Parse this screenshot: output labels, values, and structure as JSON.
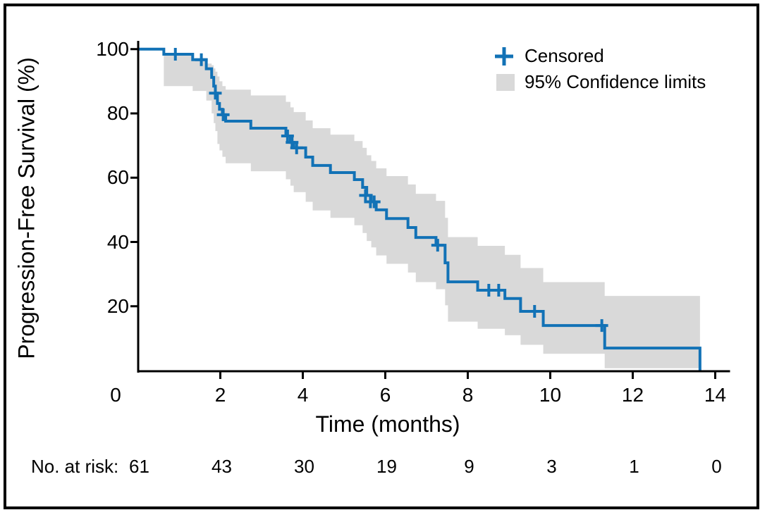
{
  "figure": {
    "y_axis": {
      "title": "Progression-Free Survival (%)",
      "ticks": [
        100,
        80,
        60,
        40,
        20
      ]
    },
    "x_axis": {
      "title": "Time (months)",
      "ticks": [
        0,
        2,
        4,
        6,
        8,
        10,
        12,
        14
      ]
    },
    "legend": {
      "censored_label": "Censored",
      "band_label": "95% Confidence limits"
    },
    "risk_table": {
      "label": "No. at risk:",
      "values": [
        "61",
        "43",
        "30",
        "19",
        "9",
        "3",
        "1",
        "0"
      ]
    },
    "colors": {
      "curve": "#1272b6",
      "band": "#d9d9d9",
      "axis": "#000000",
      "background": "#ffffff"
    }
  },
  "chart_data": {
    "type": "line",
    "subtype": "kaplan-meier-step-curve",
    "title": "",
    "xlabel": "Time (months)",
    "ylabel": "Progression-Free Survival (%)",
    "xlim": [
      0,
      14.35
    ],
    "ylim": [
      0,
      100
    ],
    "x_ticks": [
      0,
      2,
      4,
      6,
      8,
      10,
      12,
      14
    ],
    "y_ticks": [
      100,
      80,
      60,
      40,
      20
    ],
    "grid": false,
    "legend_position": "top-right",
    "series": [
      {
        "name": "Progression-Free Survival",
        "steps_time_pct": [
          [
            0,
            100
          ],
          [
            0.63,
            98.4
          ],
          [
            1.33,
            96.7
          ],
          [
            1.66,
            93.9
          ],
          [
            1.79,
            91.2
          ],
          [
            1.84,
            88.5
          ],
          [
            1.88,
            86.3
          ],
          [
            1.93,
            83.1
          ],
          [
            1.98,
            81.3
          ],
          [
            2.05,
            79.6
          ],
          [
            2.13,
            77.6
          ],
          [
            2.74,
            75.4
          ],
          [
            3.59,
            73.0
          ],
          [
            3.7,
            71.0
          ],
          [
            3.78,
            69.3
          ],
          [
            4.07,
            66.4
          ],
          [
            4.24,
            63.8
          ],
          [
            4.67,
            61.6
          ],
          [
            5.25,
            59.4
          ],
          [
            5.45,
            57.0
          ],
          [
            5.55,
            54.5
          ],
          [
            5.66,
            52.5
          ],
          [
            5.78,
            50.0
          ],
          [
            6.03,
            47.3
          ],
          [
            6.55,
            44.5
          ],
          [
            6.74,
            41.4
          ],
          [
            7.23,
            39.0
          ],
          [
            7.45,
            33.5
          ],
          [
            7.52,
            27.6
          ],
          [
            8.24,
            25.0
          ],
          [
            8.9,
            22.4
          ],
          [
            9.28,
            18.4
          ],
          [
            9.83,
            14.0
          ],
          [
            11.32,
            7.0
          ],
          [
            13.63,
            0
          ]
        ]
      }
    ],
    "censored_points_time_pct": [
      [
        0.91,
        98.4
      ],
      [
        1.54,
        96.7
      ],
      [
        1.88,
        86.3
      ],
      [
        2.07,
        79.6
      ],
      [
        3.63,
        73.0
      ],
      [
        3.74,
        71.0
      ],
      [
        3.85,
        69.3
      ],
      [
        5.52,
        54.5
      ],
      [
        5.64,
        52.5
      ],
      [
        5.73,
        52.5
      ],
      [
        7.27,
        39.0
      ],
      [
        8.51,
        25.0
      ],
      [
        8.75,
        25.0
      ],
      [
        9.62,
        18.4
      ],
      [
        11.25,
        14.0
      ]
    ],
    "confidence_band": {
      "label": "95% Confidence limits",
      "end_time": 13.63,
      "steps_time_hi_lo": [
        [
          0.63,
          98.4,
          88.5
        ],
        [
          1.33,
          96.7,
          87.0
        ],
        [
          1.66,
          95.5,
          84.0
        ],
        [
          1.79,
          95.0,
          80.0
        ],
        [
          1.84,
          94.0,
          77.0
        ],
        [
          1.88,
          93.0,
          74.5
        ],
        [
          1.93,
          91.5,
          70.5
        ],
        [
          1.98,
          90.0,
          68.5
        ],
        [
          2.05,
          88.5,
          66.5
        ],
        [
          2.13,
          87.4,
          64.5
        ],
        [
          2.74,
          85.6,
          62.0
        ],
        [
          3.59,
          83.6,
          59.5
        ],
        [
          3.7,
          81.9,
          57.5
        ],
        [
          3.78,
          80.4,
          55.5
        ],
        [
          4.07,
          77.8,
          52.5
        ],
        [
          4.24,
          75.4,
          49.8
        ],
        [
          4.67,
          73.4,
          47.5
        ],
        [
          5.25,
          71.4,
          45.2
        ],
        [
          5.45,
          69.3,
          42.8
        ],
        [
          5.55,
          67.0,
          40.3
        ],
        [
          5.66,
          65.2,
          38.3
        ],
        [
          5.78,
          62.9,
          35.8
        ],
        [
          6.03,
          60.5,
          33.2
        ],
        [
          6.55,
          57.9,
          30.5
        ],
        [
          6.74,
          55.0,
          27.5
        ],
        [
          7.23,
          52.8,
          25.3
        ],
        [
          7.45,
          47.5,
          20.3
        ],
        [
          7.52,
          41.5,
          15.2
        ],
        [
          8.24,
          38.8,
          13.0
        ],
        [
          8.9,
          36.0,
          11.0
        ],
        [
          9.28,
          31.9,
          8.0
        ],
        [
          9.83,
          27.5,
          5.2
        ],
        [
          11.32,
          23.2,
          0.7
        ]
      ]
    },
    "number_at_risk": {
      "label": "No. at risk:",
      "times": [
        0,
        2,
        4,
        6,
        8,
        10,
        12,
        14
      ],
      "values": [
        61,
        43,
        30,
        19,
        9,
        3,
        1,
        0
      ]
    }
  }
}
